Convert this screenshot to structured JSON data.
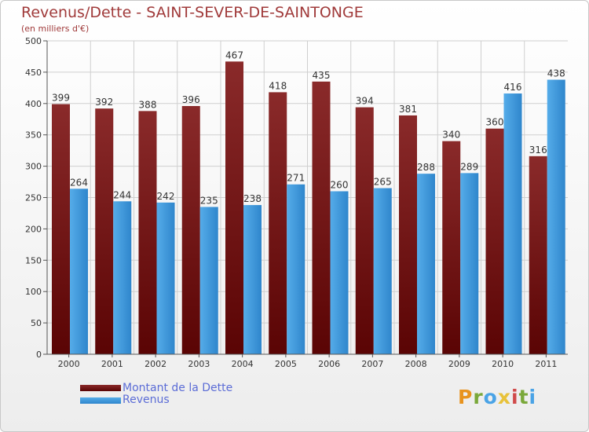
{
  "header": {
    "title": "Revenus/Dette - SAINT-SEVER-DE-SAINTONGE",
    "subtitle": "(en milliers d'€)"
  },
  "legend": {
    "items": [
      {
        "label": "Montant de la Dette",
        "color": "#6e1414"
      },
      {
        "label": "Revenus",
        "color": "#4aa3e6"
      }
    ]
  },
  "logo": {
    "text": "Proxiti",
    "colors": [
      "#e8931e",
      "#7aa83a",
      "#4aa3e6",
      "#e8c23a",
      "#d04a4a",
      "#7aa83a",
      "#4aa3e6"
    ]
  },
  "chart_data": {
    "type": "bar",
    "title": "Revenus/Dette - SAINT-SEVER-DE-SAINTONGE",
    "subtitle": "(en milliers d'€)",
    "categories": [
      "2000",
      "2001",
      "2002",
      "2003",
      "2004",
      "2005",
      "2006",
      "2007",
      "2008",
      "2009",
      "2010",
      "2011"
    ],
    "series": [
      {
        "name": "Montant de la Dette",
        "color": "#6e1414",
        "values": [
          399,
          392,
          388,
          396,
          467,
          418,
          435,
          394,
          381,
          340,
          360,
          316
        ]
      },
      {
        "name": "Revenus",
        "color": "#4aa3e6",
        "values": [
          264,
          244,
          242,
          235,
          238,
          271,
          260,
          265,
          288,
          289,
          416,
          438
        ]
      }
    ],
    "yticks": [
      "0",
      "50",
      "100",
      "150",
      "200",
      "250",
      "300",
      "350",
      "400",
      "450",
      "500"
    ],
    "ylim": [
      0,
      500
    ],
    "grid": true,
    "legend_position": "bottom-left"
  }
}
